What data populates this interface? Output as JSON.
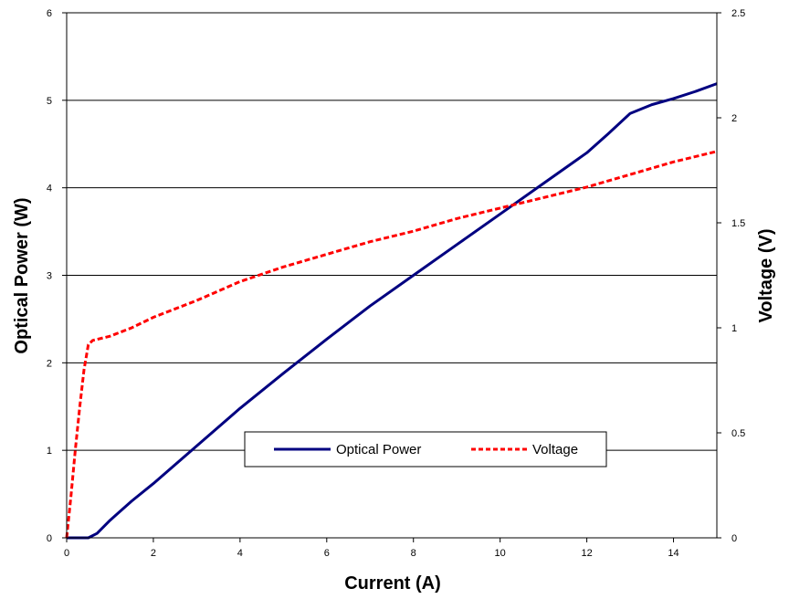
{
  "chart_data": {
    "type": "line",
    "xlabel": "Current (A)",
    "ylabel_left": "Optical Power (W)",
    "ylabel_right": "Voltage (V)",
    "xlim": [
      0,
      15
    ],
    "ylim_left": [
      0,
      6
    ],
    "ylim_right": [
      0,
      2.5
    ],
    "x_ticks": [
      0,
      2,
      4,
      6,
      8,
      10,
      12,
      14
    ],
    "y_left_ticks": [
      0,
      1,
      2,
      3,
      4,
      5,
      6
    ],
    "y_right_ticks": [
      "0",
      "0.5",
      "1",
      "1.5",
      "2",
      "2.5"
    ],
    "y_right_tick_values": [
      0,
      0.5,
      1,
      1.5,
      2,
      2.5
    ],
    "grid": "horizontal",
    "legend_position": "center-bottom",
    "series": [
      {
        "name": "Optical Power",
        "axis": "left",
        "color": "#000080",
        "style": "solid",
        "x": [
          0,
          0.5,
          0.7,
          1,
          1.5,
          2,
          3,
          4,
          5,
          6,
          7,
          8,
          9,
          10,
          11,
          12,
          12.5,
          13,
          13.5,
          14,
          14.5,
          15
        ],
        "y": [
          0,
          0,
          0.05,
          0.2,
          0.42,
          0.62,
          1.05,
          1.48,
          1.88,
          2.27,
          2.65,
          3.0,
          3.35,
          3.7,
          4.05,
          4.4,
          4.62,
          4.85,
          4.95,
          5.02,
          5.1,
          5.19
        ]
      },
      {
        "name": "Voltage",
        "axis": "right",
        "color": "#ff0000",
        "style": "dashed",
        "x": [
          0,
          0.1,
          0.2,
          0.3,
          0.4,
          0.5,
          0.6,
          0.8,
          1,
          1.5,
          2,
          3,
          4,
          5,
          6,
          7,
          8,
          9,
          10,
          11,
          12,
          13,
          14,
          15
        ],
        "y": [
          0,
          0.2,
          0.42,
          0.62,
          0.8,
          0.92,
          0.94,
          0.95,
          0.96,
          1.0,
          1.05,
          1.13,
          1.22,
          1.29,
          1.35,
          1.41,
          1.46,
          1.52,
          1.57,
          1.62,
          1.67,
          1.73,
          1.79,
          1.84
        ]
      }
    ]
  }
}
